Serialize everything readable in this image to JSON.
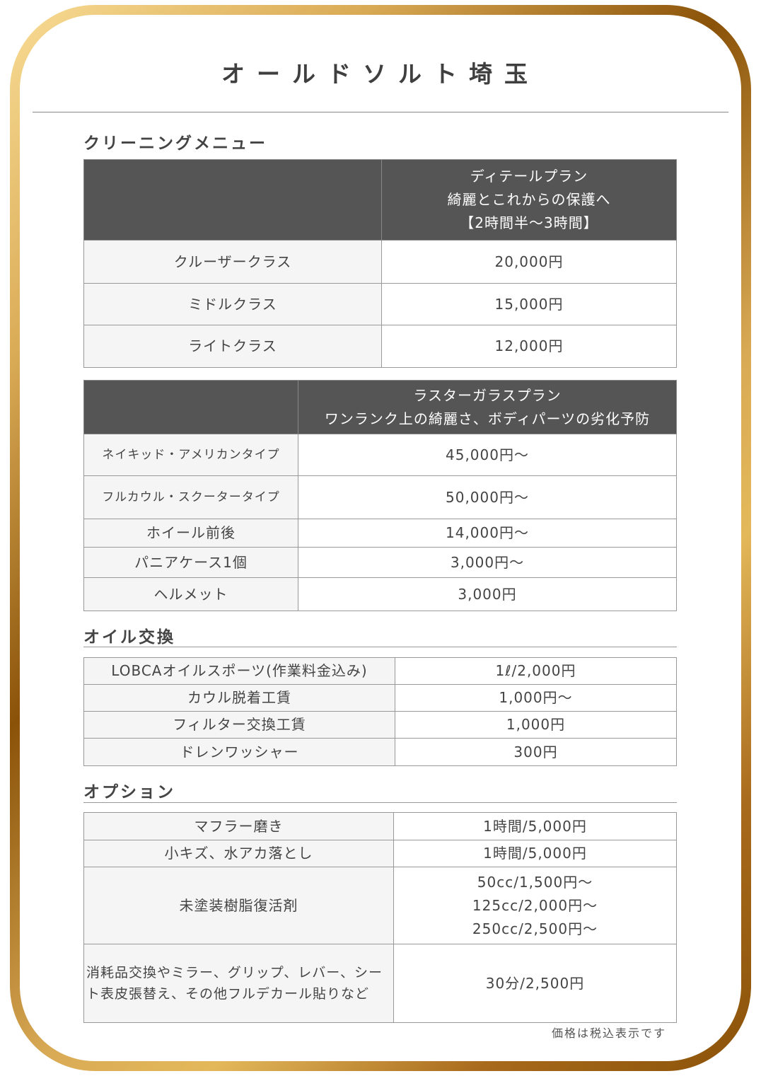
{
  "title": "オールドソルト埼玉",
  "cleaning": {
    "heading": "クリーニングメニュー",
    "detail": {
      "header": [
        "ディテールプラン",
        "綺麗とこれからの保護へ",
        "【2時間半〜3時間】"
      ],
      "rows": [
        [
          "クルーザークラス",
          "20,000円"
        ],
        [
          "ミドルクラス",
          "15,000円"
        ],
        [
          "ライトクラス",
          "12,000円"
        ]
      ]
    },
    "luster": {
      "header": [
        "ラスターガラスプラン",
        "ワンランク上の綺麗さ、ボディパーツの劣化予防"
      ],
      "rows": [
        [
          "ネイキッド・アメリカンタイプ",
          "45,000円〜"
        ],
        [
          "フルカウル・スクータータイプ",
          "50,000円〜"
        ],
        [
          "ホイール前後",
          "14,000円〜"
        ],
        [
          "パニアケース1個",
          "3,000円〜"
        ],
        [
          "ヘルメット",
          "3,000円"
        ]
      ]
    }
  },
  "oil": {
    "heading": "オイル交換",
    "rows": [
      [
        "LOBCAオイルスポーツ(作業料金込み)",
        "1ℓ/2,000円"
      ],
      [
        "カウル脱着工賃",
        "1,000円〜"
      ],
      [
        "フィルター交換工賃",
        "1,000円"
      ],
      [
        "ドレンワッシャー",
        "300円"
      ]
    ]
  },
  "option": {
    "heading": "オプション",
    "rows": [
      [
        "マフラー磨き",
        "1時間/5,000円"
      ],
      [
        "小キズ、水アカ落とし",
        "1時間/5,000円"
      ],
      [
        "未塗装樹脂復活剤",
        "50cc/1,500円〜\n125cc/2,000円〜\n250cc/2,500円〜"
      ],
      [
        "消耗品交換やミラー、グリップ、レバー、シート表皮張替え、その他フルデカール貼りなど",
        "30分/2,500円"
      ]
    ]
  },
  "footnote": "価格は税込表示です"
}
